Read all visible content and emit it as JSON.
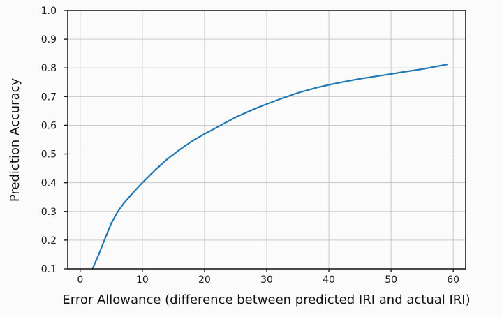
{
  "chart_data": {
    "type": "line",
    "title": "",
    "xlabel": "Error Allowance (difference between predicted IRI and actual IRI)",
    "ylabel": "Prediction Accuracy",
    "x": [
      2,
      2.5,
      3,
      3.5,
      4,
      4.5,
      5,
      6,
      7,
      8,
      9,
      10,
      12,
      14,
      16,
      18,
      20,
      22,
      25,
      28,
      30,
      32,
      35,
      38,
      40,
      42,
      45,
      48,
      50,
      52,
      55,
      57,
      59
    ],
    "y": [
      0.1,
      0.126,
      0.15,
      0.178,
      0.205,
      0.232,
      0.258,
      0.298,
      0.328,
      0.353,
      0.377,
      0.4,
      0.443,
      0.482,
      0.515,
      0.545,
      0.57,
      0.593,
      0.628,
      0.657,
      0.674,
      0.69,
      0.713,
      0.731,
      0.741,
      0.75,
      0.762,
      0.772,
      0.779,
      0.786,
      0.796,
      0.804,
      0.812
    ],
    "xlim": [
      -2,
      62
    ],
    "ylim": [
      0.1,
      1.0
    ],
    "xticks": [
      0,
      10,
      20,
      30,
      40,
      50,
      60
    ],
    "xtick_labels": [
      "0",
      "10",
      "20",
      "30",
      "40",
      "50",
      "60"
    ],
    "yticks": [
      0.1,
      0.2,
      0.3,
      0.4,
      0.5,
      0.6,
      0.7,
      0.8,
      0.9,
      1.0
    ],
    "ytick_labels": [
      "0.1",
      "0.2",
      "0.3",
      "0.4",
      "0.5",
      "0.6",
      "0.7",
      "0.8",
      "0.9",
      "1.0"
    ],
    "grid": true,
    "legend": false
  },
  "colors": {
    "line": "#1f77b4",
    "grid": "#c9c9c9",
    "spine": "#1f1f1f",
    "tick_text": "#1a1a1a",
    "label_text": "#111111",
    "background": "#fbfbfb"
  }
}
